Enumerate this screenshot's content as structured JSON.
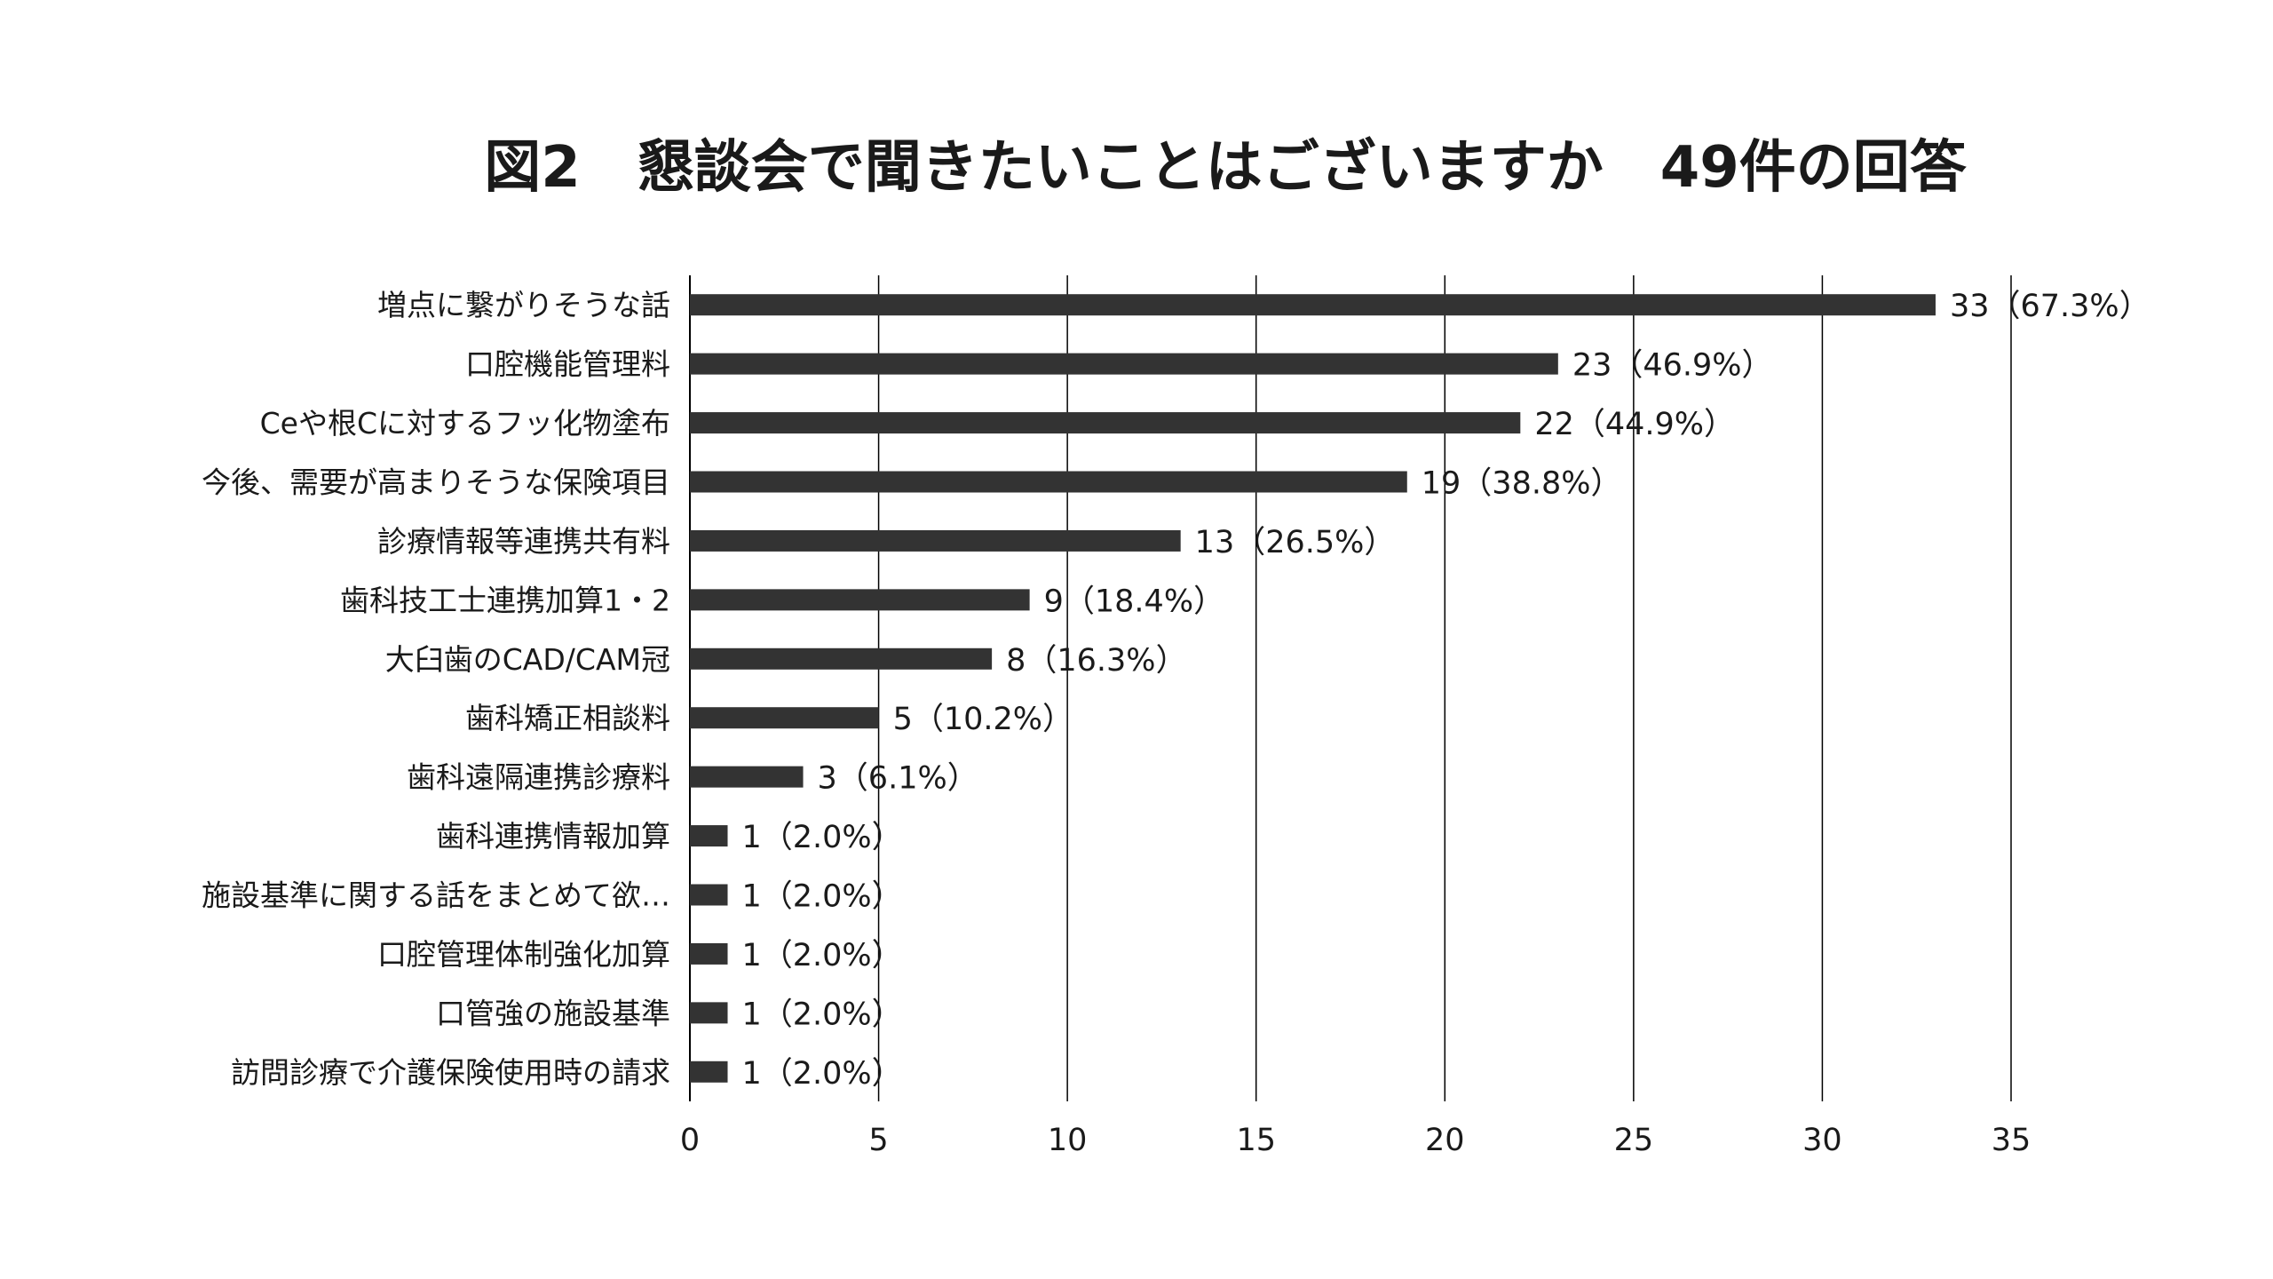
{
  "chart_data": {
    "type": "bar",
    "orientation": "horizontal",
    "title": "図2　懇談会で聞きたいことはございますか　49件の回答",
    "categories": [
      "増点に繋がりそうな話",
      "口腔機能管理料",
      "Ceや根Cに対するフッ化物塗布",
      "今後、需要が高まりそうな保険項目",
      "診療情報等連携共有料",
      "歯科技工士連携加算1・2",
      "大臼歯のCAD/CAM冠",
      "歯科矯正相談料",
      "歯科遠隔連携診療料",
      "歯科連携情報加算",
      "施設基準に関する話をまとめて欲…",
      "口腔管理体制強化加算",
      "口管強の施設基準",
      "訪問診療で介護保険使用時の請求"
    ],
    "values": [
      33,
      23,
      22,
      19,
      13,
      9,
      8,
      5,
      3,
      1,
      1,
      1,
      1,
      1
    ],
    "data_labels": [
      "33（67.3%）",
      "23（46.9%）",
      "22（44.9%）",
      "19（38.8%）",
      "13（26.5%）",
      "9（18.4%）",
      "8（16.3%）",
      "5（10.2%）",
      "3（6.1%）",
      "1（2.0%）",
      "1（2.0%）",
      "1（2.0%）",
      "1（2.0%）",
      "1（2.0%）"
    ],
    "x_ticks": [
      "0",
      "5",
      "10",
      "15",
      "20",
      "25",
      "30",
      "35"
    ],
    "xlim": [
      0,
      35
    ],
    "xlabel": "",
    "ylabel": "",
    "grid": "vertical",
    "legend": "none",
    "bar_color": "#333333",
    "grid_color": "#000000"
  }
}
